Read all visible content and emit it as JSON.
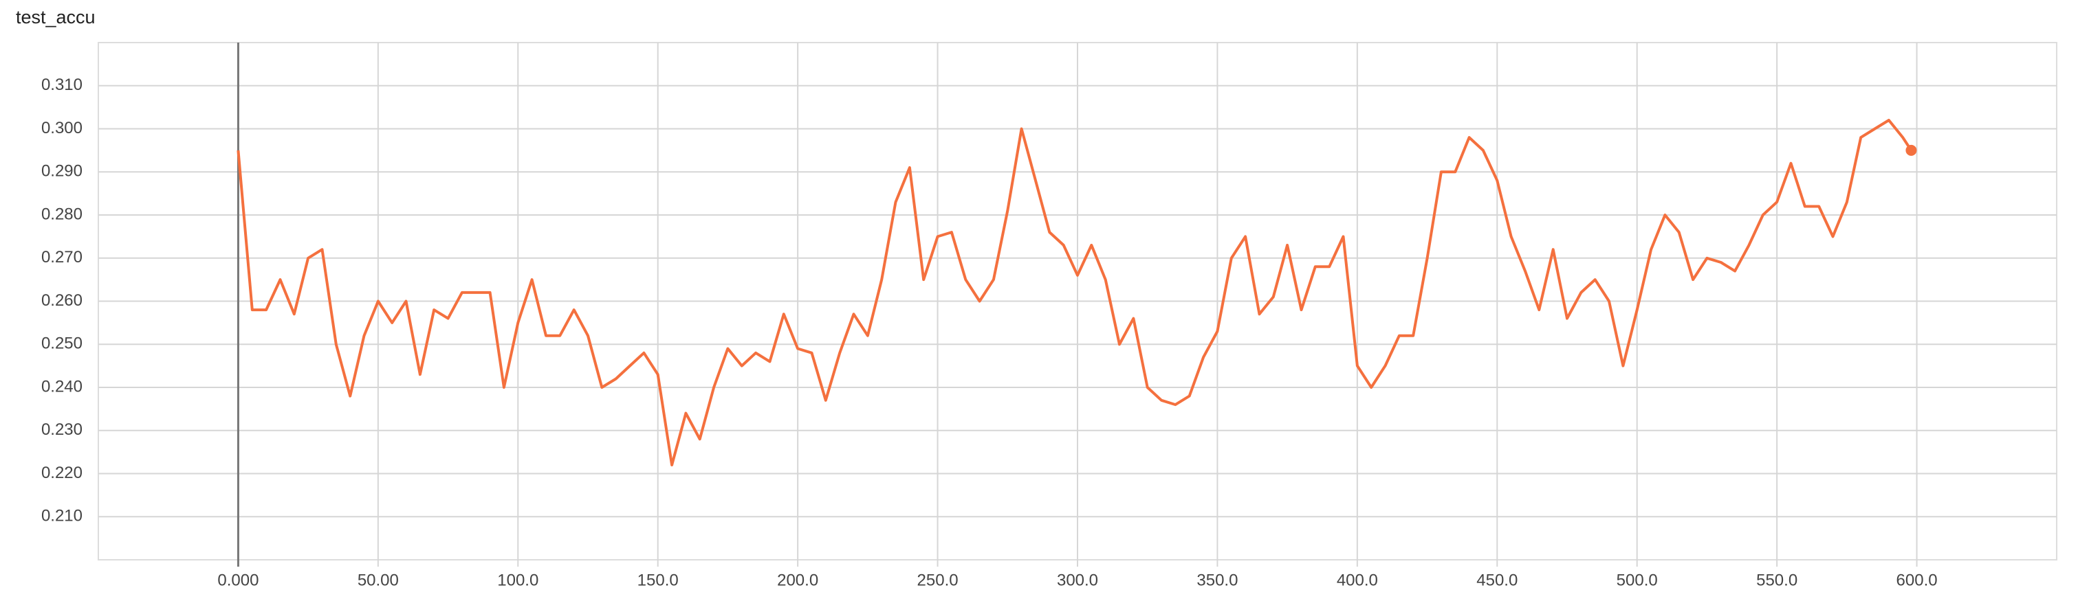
{
  "chart_data": {
    "type": "line",
    "title": "test_accu",
    "x": [
      0,
      5,
      10,
      15,
      20,
      25,
      30,
      35,
      40,
      45,
      50,
      55,
      60,
      65,
      70,
      75,
      80,
      85,
      90,
      95,
      100,
      105,
      110,
      115,
      120,
      125,
      130,
      135,
      140,
      145,
      150,
      155,
      160,
      165,
      170,
      175,
      180,
      185,
      190,
      195,
      200,
      205,
      210,
      215,
      220,
      225,
      230,
      235,
      240,
      245,
      250,
      255,
      260,
      265,
      270,
      275,
      280,
      285,
      290,
      295,
      300,
      305,
      310,
      315,
      320,
      325,
      330,
      335,
      340,
      345,
      350,
      355,
      360,
      365,
      370,
      375,
      380,
      385,
      390,
      395,
      400,
      405,
      410,
      415,
      420,
      425,
      430,
      435,
      440,
      445,
      450,
      455,
      460,
      465,
      470,
      475,
      480,
      485,
      490,
      495,
      500,
      505,
      510,
      515,
      520,
      525,
      530,
      535,
      540,
      545,
      550,
      555,
      560,
      565,
      570,
      575,
      580,
      585,
      590,
      595,
      598
    ],
    "values": [
      0.295,
      0.258,
      0.258,
      0.265,
      0.257,
      0.27,
      0.272,
      0.25,
      0.238,
      0.252,
      0.26,
      0.255,
      0.26,
      0.243,
      0.258,
      0.256,
      0.262,
      0.262,
      0.262,
      0.24,
      0.255,
      0.265,
      0.252,
      0.252,
      0.258,
      0.252,
      0.24,
      0.242,
      0.245,
      0.248,
      0.243,
      0.222,
      0.234,
      0.228,
      0.24,
      0.249,
      0.245,
      0.248,
      0.246,
      0.257,
      0.249,
      0.248,
      0.237,
      0.248,
      0.257,
      0.252,
      0.265,
      0.283,
      0.291,
      0.265,
      0.275,
      0.276,
      0.265,
      0.26,
      0.265,
      0.281,
      0.3,
      0.288,
      0.276,
      0.273,
      0.266,
      0.273,
      0.265,
      0.25,
      0.256,
      0.24,
      0.237,
      0.236,
      0.238,
      0.247,
      0.253,
      0.27,
      0.275,
      0.257,
      0.261,
      0.273,
      0.258,
      0.268,
      0.268,
      0.275,
      0.245,
      0.24,
      0.245,
      0.252,
      0.252,
      0.27,
      0.29,
      0.29,
      0.298,
      0.295,
      0.288,
      0.275,
      0.267,
      0.258,
      0.272,
      0.256,
      0.262,
      0.265,
      0.26,
      0.245,
      0.258,
      0.272,
      0.28,
      0.276,
      0.265,
      0.27,
      0.269,
      0.267,
      0.273,
      0.28,
      0.283,
      0.292,
      0.282,
      0.282,
      0.275,
      0.283,
      0.298,
      0.3,
      0.302,
      0.298,
      0.295
    ],
    "color": "#f4703e",
    "xlim": [
      -50,
      650
    ],
    "xticks": [
      {
        "value": 0,
        "label": "0.000"
      },
      {
        "value": 50,
        "label": "50.00"
      },
      {
        "value": 100,
        "label": "100.0"
      },
      {
        "value": 150,
        "label": "150.0"
      },
      {
        "value": 200,
        "label": "200.0"
      },
      {
        "value": 250,
        "label": "250.0"
      },
      {
        "value": 300,
        "label": "300.0"
      },
      {
        "value": 350,
        "label": "350.0"
      },
      {
        "value": 400,
        "label": "400.0"
      },
      {
        "value": 450,
        "label": "450.0"
      },
      {
        "value": 500,
        "label": "500.0"
      },
      {
        "value": 550,
        "label": "550.0"
      },
      {
        "value": 600,
        "label": "600.0"
      }
    ],
    "ylim": [
      0.2,
      0.32
    ],
    "yticks": [
      {
        "value": 0.21,
        "label": "0.210"
      },
      {
        "value": 0.22,
        "label": "0.220"
      },
      {
        "value": 0.23,
        "label": "0.230"
      },
      {
        "value": 0.24,
        "label": "0.240"
      },
      {
        "value": 0.25,
        "label": "0.250"
      },
      {
        "value": 0.26,
        "label": "0.260"
      },
      {
        "value": 0.27,
        "label": "0.270"
      },
      {
        "value": 0.28,
        "label": "0.280"
      },
      {
        "value": 0.29,
        "label": "0.290"
      },
      {
        "value": 0.3,
        "label": "0.300"
      },
      {
        "value": 0.31,
        "label": "0.310"
      }
    ],
    "grid": true
  }
}
